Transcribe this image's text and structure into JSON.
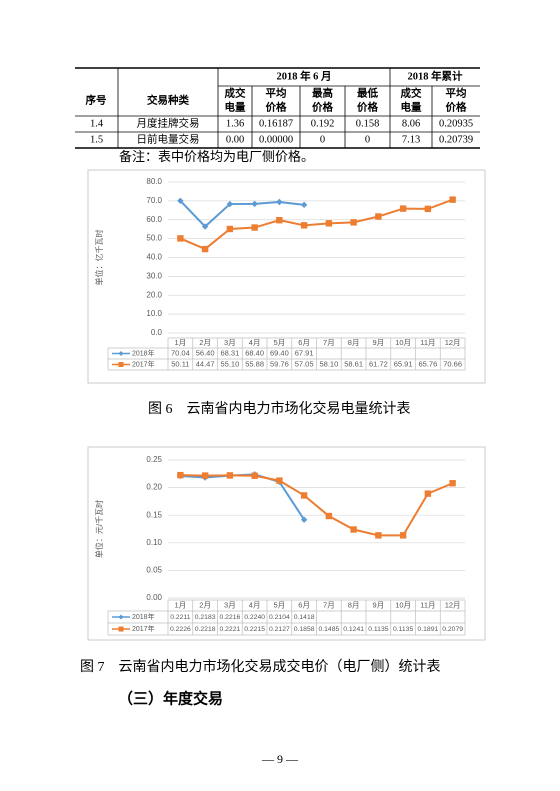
{
  "table": {
    "header": {
      "no": "序号",
      "type": "交易种类",
      "group1": "2018 年 6 月",
      "group2": "2018 年累计",
      "columns": [
        [
          "成交",
          "电量"
        ],
        [
          "平均",
          "价格"
        ],
        [
          "最高",
          "价格"
        ],
        [
          "最低",
          "价格"
        ],
        [
          "成交",
          "电量"
        ],
        [
          "平均",
          "价格"
        ]
      ]
    },
    "rows": [
      [
        "1.4",
        "月度挂牌交易",
        "1.36",
        "0.16187",
        "0.192",
        "0.158",
        "8.06",
        "0.20935"
      ],
      [
        "1.5",
        "日前电量交易",
        "0.00",
        "0.00000",
        "0",
        "0",
        "7.13",
        "0.20739"
      ]
    ]
  },
  "note": "备注：表中价格均为电厂侧价格。",
  "chart_data": [
    {
      "type": "line",
      "y_label": "单位：亿千瓦时",
      "categories": [
        "1月",
        "2月",
        "3月",
        "4月",
        "5月",
        "6月",
        "7月",
        "8月",
        "9月",
        "10月",
        "11月",
        "12月"
      ],
      "ylim": [
        0,
        80
      ],
      "yticks": [
        {
          "value": 0,
          "label": "0.0"
        },
        {
          "value": 10,
          "label": "10.0"
        },
        {
          "value": 20,
          "label": "20.0"
        },
        {
          "value": 30,
          "label": "30.0"
        },
        {
          "value": 40,
          "label": "40.0"
        },
        {
          "value": 50,
          "label": "50.0"
        },
        {
          "value": 60,
          "label": "60.0"
        },
        {
          "value": 70,
          "label": "70.0"
        },
        {
          "value": 80,
          "label": "80.0"
        }
      ],
      "grid": true,
      "series": [
        {
          "name": "2018年",
          "color": "#5b9bd5",
          "marker": "diamond",
          "values": [
            70.04,
            56.4,
            68.31,
            68.4,
            69.4,
            67.91,
            null,
            null,
            null,
            null,
            null,
            null
          ],
          "value_labels": [
            "70.04",
            "56.40",
            "68.31",
            "68.40",
            "69.40",
            "67.91",
            null,
            null,
            null,
            null,
            null,
            null
          ]
        },
        {
          "name": "2017年",
          "color": "#ed7d31",
          "marker": "square",
          "values": [
            50.11,
            44.47,
            55.1,
            55.88,
            59.76,
            57.05,
            58.1,
            58.61,
            61.72,
            65.91,
            65.76,
            70.66
          ],
          "value_labels": [
            "50.11",
            "44.47",
            "55.10",
            "55.88",
            "59.76",
            "57.05",
            "58.10",
            "58.61",
            "61.72",
            "65.91",
            "65.76",
            "70.66"
          ]
        }
      ]
    },
    {
      "type": "line",
      "y_label": "单位：元/千瓦时",
      "categories": [
        "1月",
        "2月",
        "3月",
        "4月",
        "5月",
        "6月",
        "7月",
        "8月",
        "9月",
        "10月",
        "11月",
        "12月"
      ],
      "ylim": [
        0,
        0.25
      ],
      "yticks": [
        {
          "value": 0,
          "label": "0.00"
        },
        {
          "value": 0.05,
          "label": "0.05"
        },
        {
          "value": 0.1,
          "label": "0.10"
        },
        {
          "value": 0.15,
          "label": "0.15"
        },
        {
          "value": 0.2,
          "label": "0.20"
        },
        {
          "value": 0.25,
          "label": "0.25"
        }
      ],
      "grid": true,
      "series": [
        {
          "name": "2018年",
          "color": "#5b9bd5",
          "marker": "diamond",
          "values": [
            0.2211,
            0.2183,
            0.2216,
            0.224,
            0.2104,
            0.1418,
            null,
            null,
            null,
            null,
            null,
            null
          ],
          "value_labels": [
            "0.2211",
            "0.2183",
            "0.2216",
            "0.2240",
            "0.2104",
            "0.1418",
            null,
            null,
            null,
            null,
            null,
            null
          ]
        },
        {
          "name": "2017年",
          "color": "#ed7d31",
          "marker": "square",
          "values": [
            0.2226,
            0.2218,
            0.2221,
            0.2215,
            0.2127,
            0.1858,
            0.1485,
            0.1241,
            0.1135,
            0.1135,
            0.1891,
            0.2079
          ],
          "value_labels": [
            "0.2226",
            "0.2218",
            "0.2221",
            "0.2215",
            "0.2127",
            "0.1858",
            "0.1485",
            "0.1241",
            "0.1135",
            "0.1135",
            "0.1891",
            "0.2079"
          ]
        }
      ]
    }
  ],
  "captions": [
    "图 6　云南省内电力市场化交易电量统计表",
    "图 7　云南省内电力市场化交易成交电价（电厂侧）统计表"
  ],
  "section_heading": "（三）年度交易",
  "page_number": "— 9 —"
}
